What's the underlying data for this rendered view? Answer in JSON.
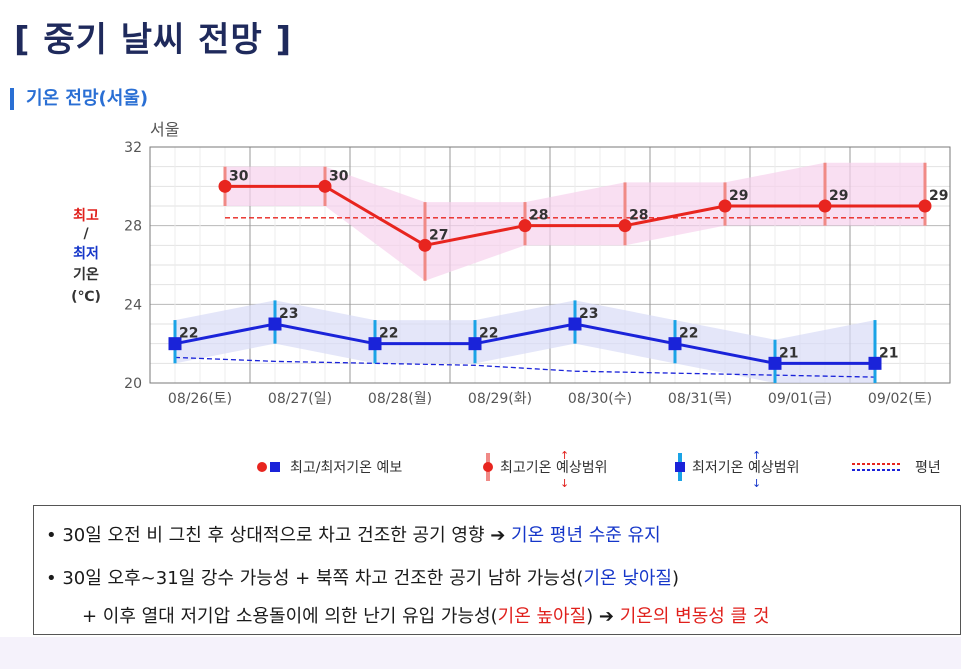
{
  "page": {
    "title": "[ 중기 날씨 전망 ]",
    "section": "기온 전망(서울)"
  },
  "chart_data": {
    "type": "line",
    "location": "서울",
    "ylabel": {
      "max": "최고",
      "sep": "/",
      "min": "최저",
      "word": "기온",
      "unit": "(℃)"
    },
    "ylim": [
      20,
      32
    ],
    "yticks": [
      20,
      24,
      28,
      32
    ],
    "categories": [
      "08/26(토)",
      "08/27(일)",
      "08/28(월)",
      "08/29(화)",
      "08/30(수)",
      "08/31(목)",
      "09/01(금)",
      "09/02(토)"
    ],
    "series": [
      {
        "name": "최고기온",
        "color": "#e8251f",
        "x": [
          0,
          1,
          2,
          3,
          4,
          5,
          6,
          7
        ],
        "values": [
          30,
          30,
          27,
          28,
          28,
          29,
          29,
          29
        ],
        "range_low": [
          29,
          29,
          25.2,
          27,
          27,
          28,
          28,
          28
        ],
        "range_high": [
          31,
          31,
          29.2,
          29.2,
          30.2,
          30.2,
          31.2,
          31.2
        ],
        "normal": [
          28.4,
          28.4,
          28.4,
          28.4,
          28.4,
          28.4,
          28.4,
          28.4
        ]
      },
      {
        "name": "최저기온",
        "color": "#1a23d9",
        "x": [
          -0.5,
          0.5,
          1.5,
          2.5,
          3.5,
          4.5,
          5.5,
          6.5
        ],
        "values": [
          22,
          23,
          22,
          22,
          23,
          22,
          21,
          21
        ],
        "range_low": [
          21,
          22,
          21,
          21,
          22,
          21,
          20,
          20
        ],
        "range_high": [
          23.2,
          24.2,
          23.2,
          23.2,
          24.2,
          23.2,
          22.2,
          23.2
        ],
        "normal": [
          21.3,
          21.1,
          21.0,
          20.9,
          20.6,
          20.5,
          20.4,
          20.3
        ]
      }
    ],
    "legend": {
      "forecast": "최고/최저기온 예보",
      "max_range": "최고기온 예상범위",
      "min_range": "최저기온 예상범위",
      "normal": "평년"
    }
  },
  "summary": {
    "line1": {
      "bullet": "•",
      "text": "30일 오전 비 그친 후 상대적으로 차고 건조한 공기 영향 ➔ ",
      "highlight": "기온 평년 수준 유지"
    },
    "line2": {
      "bullet": "•",
      "text": "30일 오후~31일 강수 가능성 + 북쪽 차고 건조한 공기 남하 가능성(",
      "highlight": "기온 낮아질",
      "end": ")"
    },
    "line3": {
      "text": "+ 이후 열대 저기압 소용돌이에 의한 난기 유입 가능성(",
      "highlight": "기온 높아질",
      "mid": ") ➔ ",
      "highlight2": "기온의 변동성 클 것"
    }
  }
}
